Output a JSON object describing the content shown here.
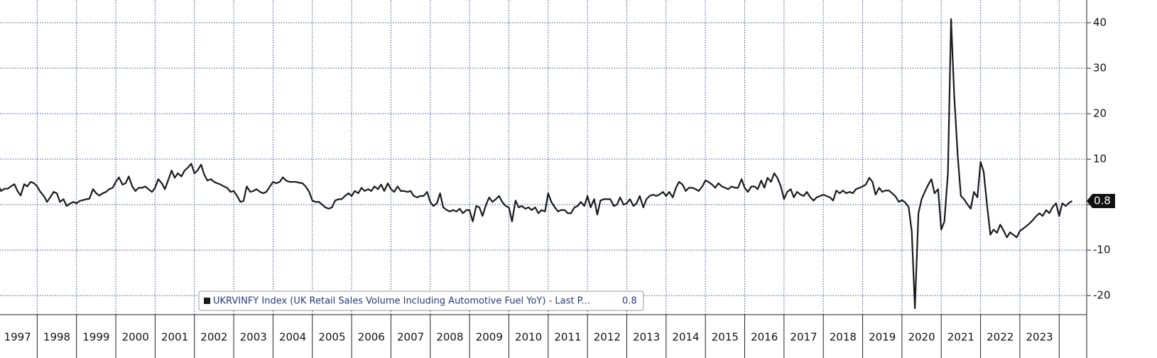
{
  "chart_data": {
    "type": "line",
    "legend_title": "UKRVINFY Index (UK Retail Sales Volume Including Automotive Fuel YoY) - Last P...",
    "categories": [
      "1997",
      "1998",
      "1999",
      "2000",
      "2001",
      "2002",
      "2003",
      "2004",
      "2005",
      "2006",
      "2007",
      "2008",
      "2009",
      "2010",
      "2011",
      "2012",
      "2013",
      "2014",
      "2015",
      "2016",
      "2017",
      "2018",
      "2019",
      "2020",
      "2021",
      "2022",
      "2023"
    ],
    "x": [
      1997,
      1997.08,
      1997.17,
      1997.25,
      1997.33,
      1997.42,
      1997.5,
      1997.58,
      1997.67,
      1997.75,
      1997.83,
      1997.92,
      1998,
      1998.08,
      1998.17,
      1998.25,
      1998.33,
      1998.42,
      1998.5,
      1998.58,
      1998.67,
      1998.75,
      1998.83,
      1998.92,
      1999,
      1999.08,
      1999.17,
      1999.25,
      1999.33,
      1999.42,
      1999.5,
      1999.58,
      1999.67,
      1999.75,
      1999.83,
      1999.92,
      2000,
      2000.08,
      2000.17,
      2000.25,
      2000.33,
      2000.42,
      2000.5,
      2000.58,
      2000.67,
      2000.75,
      2000.83,
      2000.92,
      2001,
      2001.08,
      2001.17,
      2001.25,
      2001.33,
      2001.42,
      2001.5,
      2001.58,
      2001.67,
      2001.75,
      2001.83,
      2001.92,
      2002,
      2002.08,
      2002.17,
      2002.25,
      2002.33,
      2002.42,
      2002.5,
      2002.58,
      2002.67,
      2002.75,
      2002.83,
      2002.92,
      2003,
      2003.08,
      2003.17,
      2003.25,
      2003.33,
      2003.42,
      2003.5,
      2003.58,
      2003.67,
      2003.75,
      2003.83,
      2003.92,
      2004,
      2004.08,
      2004.17,
      2004.25,
      2004.33,
      2004.42,
      2004.5,
      2004.58,
      2004.67,
      2004.75,
      2004.83,
      2004.92,
      2005,
      2005.08,
      2005.17,
      2005.25,
      2005.33,
      2005.42,
      2005.5,
      2005.58,
      2005.67,
      2005.75,
      2005.83,
      2005.92,
      2006,
      2006.08,
      2006.17,
      2006.25,
      2006.33,
      2006.42,
      2006.5,
      2006.58,
      2006.67,
      2006.75,
      2006.83,
      2006.92,
      2007,
      2007.08,
      2007.17,
      2007.25,
      2007.33,
      2007.42,
      2007.5,
      2007.58,
      2007.67,
      2007.75,
      2007.83,
      2007.92,
      2008,
      2008.08,
      2008.17,
      2008.25,
      2008.33,
      2008.42,
      2008.5,
      2008.58,
      2008.67,
      2008.75,
      2008.83,
      2008.92,
      2009,
      2009.08,
      2009.17,
      2009.25,
      2009.33,
      2009.42,
      2009.5,
      2009.58,
      2009.67,
      2009.75,
      2009.83,
      2009.92,
      2010,
      2010.08,
      2010.17,
      2010.25,
      2010.33,
      2010.42,
      2010.5,
      2010.58,
      2010.67,
      2010.75,
      2010.83,
      2010.92,
      2011,
      2011.08,
      2011.17,
      2011.25,
      2011.33,
      2011.42,
      2011.5,
      2011.58,
      2011.67,
      2011.75,
      2011.83,
      2011.92,
      2012,
      2012.08,
      2012.17,
      2012.25,
      2012.33,
      2012.42,
      2012.5,
      2012.58,
      2012.67,
      2012.75,
      2012.83,
      2012.92,
      2013,
      2013.08,
      2013.17,
      2013.25,
      2013.33,
      2013.42,
      2013.5,
      2013.58,
      2013.67,
      2013.75,
      2013.83,
      2013.92,
      2014,
      2014.08,
      2014.17,
      2014.25,
      2014.33,
      2014.42,
      2014.5,
      2014.58,
      2014.67,
      2014.75,
      2014.83,
      2014.92,
      2015,
      2015.08,
      2015.17,
      2015.25,
      2015.33,
      2015.42,
      2015.5,
      2015.58,
      2015.67,
      2015.75,
      2015.83,
      2015.92,
      2016,
      2016.08,
      2016.17,
      2016.25,
      2016.33,
      2016.42,
      2016.5,
      2016.58,
      2016.67,
      2016.75,
      2016.83,
      2016.92,
      2017,
      2017.08,
      2017.17,
      2017.25,
      2017.33,
      2017.42,
      2017.5,
      2017.58,
      2017.67,
      2017.75,
      2017.83,
      2017.92,
      2018,
      2018.08,
      2018.17,
      2018.25,
      2018.33,
      2018.42,
      2018.5,
      2018.58,
      2018.67,
      2018.75,
      2018.83,
      2018.92,
      2019,
      2019.08,
      2019.17,
      2019.25,
      2019.33,
      2019.42,
      2019.5,
      2019.58,
      2019.67,
      2019.75,
      2019.83,
      2019.92,
      2020,
      2020.08,
      2020.17,
      2020.25,
      2020.33,
      2020.42,
      2020.5,
      2020.58,
      2020.67,
      2020.75,
      2020.83,
      2020.92,
      2021,
      2021.08,
      2021.17,
      2021.25,
      2021.33,
      2021.42,
      2021.5,
      2021.58,
      2021.67,
      2021.75,
      2021.83,
      2021.92,
      2022,
      2022.08,
      2022.17,
      2022.25,
      2022.33,
      2022.42,
      2022.5,
      2022.58,
      2022.67,
      2022.75,
      2022.83,
      2022.92,
      2023,
      2023.08,
      2023.17,
      2023.25,
      2023.33,
      2023.42,
      2023.5,
      2023.58,
      2023.67,
      2023.75,
      2023.83,
      2023.92,
      2024,
      2024.08,
      2024.17,
      2024.25,
      2024.33
    ],
    "series": [
      {
        "name": "UKRVINFY Index",
        "color": "#1a1a1a",
        "values": [
          4.5,
          3,
          3.5,
          3.5,
          4,
          4.5,
          3,
          2,
          4.5,
          4,
          5,
          4.7,
          4,
          2.8,
          1.9,
          0.6,
          1.6,
          2.8,
          2.5,
          0.6,
          1.2,
          -0.3,
          0.2,
          0.6,
          0.3,
          0.8,
          1,
          1.2,
          1.3,
          3.4,
          2.5,
          2,
          2.5,
          2.8,
          3.4,
          3.7,
          5,
          6,
          4.4,
          4.7,
          6.2,
          4,
          3,
          3.7,
          3.7,
          4,
          3.4,
          2.8,
          3.7,
          5.6,
          4.7,
          3.4,
          5.3,
          7.5,
          5.9,
          6.9,
          6.2,
          7.5,
          8.1,
          9,
          6.9,
          7.5,
          8.8,
          6.6,
          5.3,
          5.6,
          5,
          4.7,
          4.4,
          4,
          3.7,
          2.8,
          3,
          2,
          0.6,
          0.8,
          4,
          2.8,
          3,
          3.4,
          2.8,
          2.5,
          2.8,
          4,
          5,
          4.7,
          5,
          6,
          5.3,
          5,
          5,
          5,
          4.8,
          4.7,
          4,
          2.8,
          0.9,
          0.6,
          0.6,
          0,
          -0.6,
          -0.9,
          -0.6,
          0.9,
          1.2,
          1.2,
          1.9,
          2.5,
          1.9,
          3,
          2.5,
          3.7,
          3,
          3.4,
          3,
          4,
          3.4,
          4.4,
          3,
          4.7,
          3.4,
          2.8,
          4,
          3,
          3,
          2.8,
          3,
          1.9,
          1.6,
          1.9,
          1.9,
          2.8,
          0.6,
          -0.3,
          0.3,
          2.5,
          -0.6,
          -1.2,
          -1.5,
          -1.2,
          -1.5,
          -0.9,
          -1.9,
          -1.2,
          -1.2,
          -3.7,
          -0.3,
          -0.6,
          -2.5,
          0,
          1.6,
          0.6,
          1.2,
          1.9,
          0.6,
          -0.3,
          -0.6,
          -3.7,
          0.9,
          -0.6,
          -0.3,
          -0.9,
          -0.6,
          -1.2,
          -0.6,
          -1.9,
          -1.2,
          -1.5,
          2.5,
          0.6,
          -0.6,
          -1.5,
          -1.2,
          -1.2,
          -1.9,
          -1.9,
          -0.6,
          -0.3,
          0.6,
          -0.3,
          1.9,
          -0.6,
          1.2,
          -2.2,
          0.9,
          1.2,
          1.2,
          1.2,
          -0.3,
          0,
          1.6,
          0,
          0.3,
          1.2,
          -0.3,
          0.3,
          1.9,
          -0.6,
          1.2,
          1.9,
          2.2,
          1.9,
          2.2,
          2.8,
          1.9,
          2.8,
          1.6,
          3.7,
          5,
          4.4,
          3,
          3.7,
          3.7,
          3.4,
          3,
          4,
          5.3,
          5,
          4.4,
          3.7,
          4.7,
          4,
          3.7,
          3.4,
          4,
          3.7,
          3.7,
          5.6,
          3.7,
          2.8,
          4,
          4,
          3.4,
          5.3,
          3.7,
          5.9,
          5,
          6.9,
          5.9,
          4,
          1.2,
          2.8,
          3.4,
          1.6,
          2.8,
          2.2,
          1.9,
          2.8,
          1.6,
          0.9,
          1.6,
          1.9,
          2.2,
          1.9,
          1.6,
          0.9,
          3.1,
          2.5,
          3.1,
          2.5,
          2.8,
          2.5,
          3.4,
          3.7,
          4,
          4.4,
          5.9,
          5,
          2.2,
          3.7,
          2.8,
          3.1,
          3.1,
          2.5,
          1.9,
          0.6,
          1,
          0.5,
          -0.5,
          -5.9,
          -22.8,
          -1.9,
          1.2,
          2.8,
          4.4,
          5.6,
          2.5,
          3.4,
          -5.5,
          -3.7,
          7,
          40.8,
          24,
          10.6,
          1.9,
          1.2,
          0,
          -0.9,
          2.8,
          1.6,
          9.4,
          7.2,
          -0.5,
          -6.6,
          -5.5,
          -6.2,
          -4.4,
          -5.6,
          -7.2,
          -6.1,
          -6.6,
          -7.2,
          -5.8,
          -5.3,
          -4.7,
          -4.1,
          -3.4,
          -2.5,
          -1.9,
          -2.5,
          -1.2,
          -1.9,
          -0.6,
          0.3,
          -2.5,
          0.3,
          -0.3,
          0.4,
          0.8
        ]
      }
    ],
    "xlim": [
      1997,
      2024.7
    ],
    "xticks": [
      1998,
      1999,
      2000,
      2001,
      2002,
      2003,
      2004,
      2005,
      2006,
      2007,
      2008,
      2009,
      2010,
      2011,
      2012,
      2013,
      2014,
      2015,
      2016,
      2017,
      2018,
      2019,
      2020,
      2021,
      2022,
      2023,
      2024
    ],
    "ylim": [
      -24.2,
      45
    ],
    "yticks": [
      -20,
      -10,
      0,
      10,
      20,
      30,
      40
    ],
    "grid": true
  }
}
